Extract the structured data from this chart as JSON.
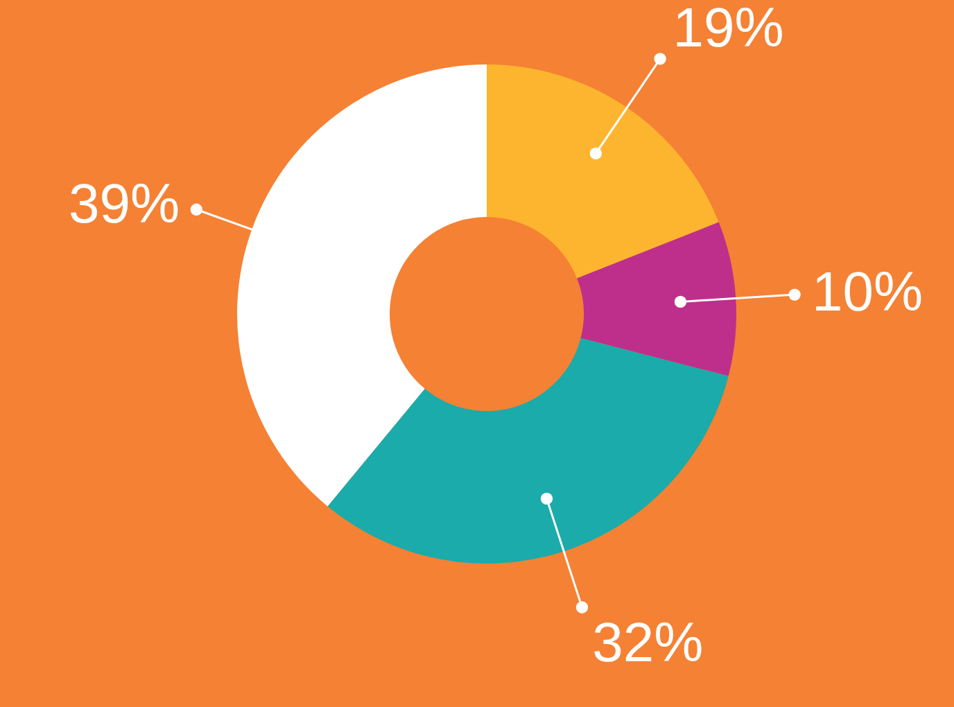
{
  "chart_data": {
    "type": "donut",
    "categories": [
      null,
      null,
      null,
      null
    ],
    "values": [
      19,
      10,
      32,
      39
    ],
    "colors": [
      "#fdb52f",
      "#be2f8b",
      "#1aabaa",
      "#ffffff"
    ],
    "value_labels": [
      "19%",
      "10%",
      "32%",
      "39%"
    ]
  }
}
